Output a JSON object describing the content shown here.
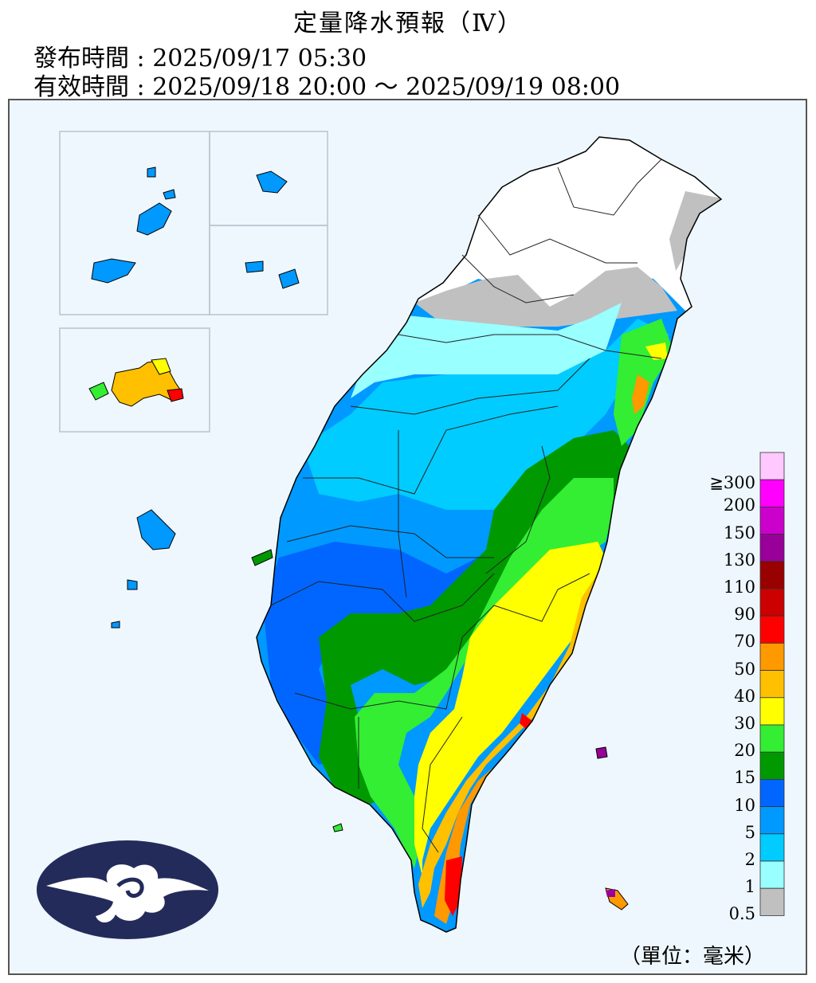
{
  "header": {
    "title": "定量降水預報（Ⅳ）",
    "issue_label": "發布時間 :",
    "issue_time": "2025/09/17 05:30",
    "valid_label": "有效時間 :",
    "valid_time": "2025/09/18 20:00 ～ 2025/09/19 08:00"
  },
  "legend": {
    "unit": "（單位：毫米）",
    "levels": [
      {
        "label": "≧300",
        "color": "#ffc8ff"
      },
      {
        "label": "200",
        "color": "#ff00ff"
      },
      {
        "label": "150",
        "color": "#cc00cc"
      },
      {
        "label": "130",
        "color": "#990099"
      },
      {
        "label": "110",
        "color": "#990000"
      },
      {
        "label": "90",
        "color": "#cc0000"
      },
      {
        "label": "70",
        "color": "#ff0000"
      },
      {
        "label": "50",
        "color": "#ff9900"
      },
      {
        "label": "40",
        "color": "#ffc000"
      },
      {
        "label": "30",
        "color": "#ffff00"
      },
      {
        "label": "20",
        "color": "#33ee33"
      },
      {
        "label": "15",
        "color": "#009900"
      },
      {
        "label": "10",
        "color": "#0066ff"
      },
      {
        "label": "5",
        "color": "#0099ff"
      },
      {
        "label": "2",
        "color": "#00ccff"
      },
      {
        "label": "1",
        "color": "#99ffff"
      },
      {
        "label": "0.5",
        "color": "#c0c0c0"
      }
    ]
  },
  "colors": {
    "background": "#eef7fd",
    "logo": "#232b5a"
  },
  "icons": {
    "logo": "cwa-cloud-logo"
  }
}
